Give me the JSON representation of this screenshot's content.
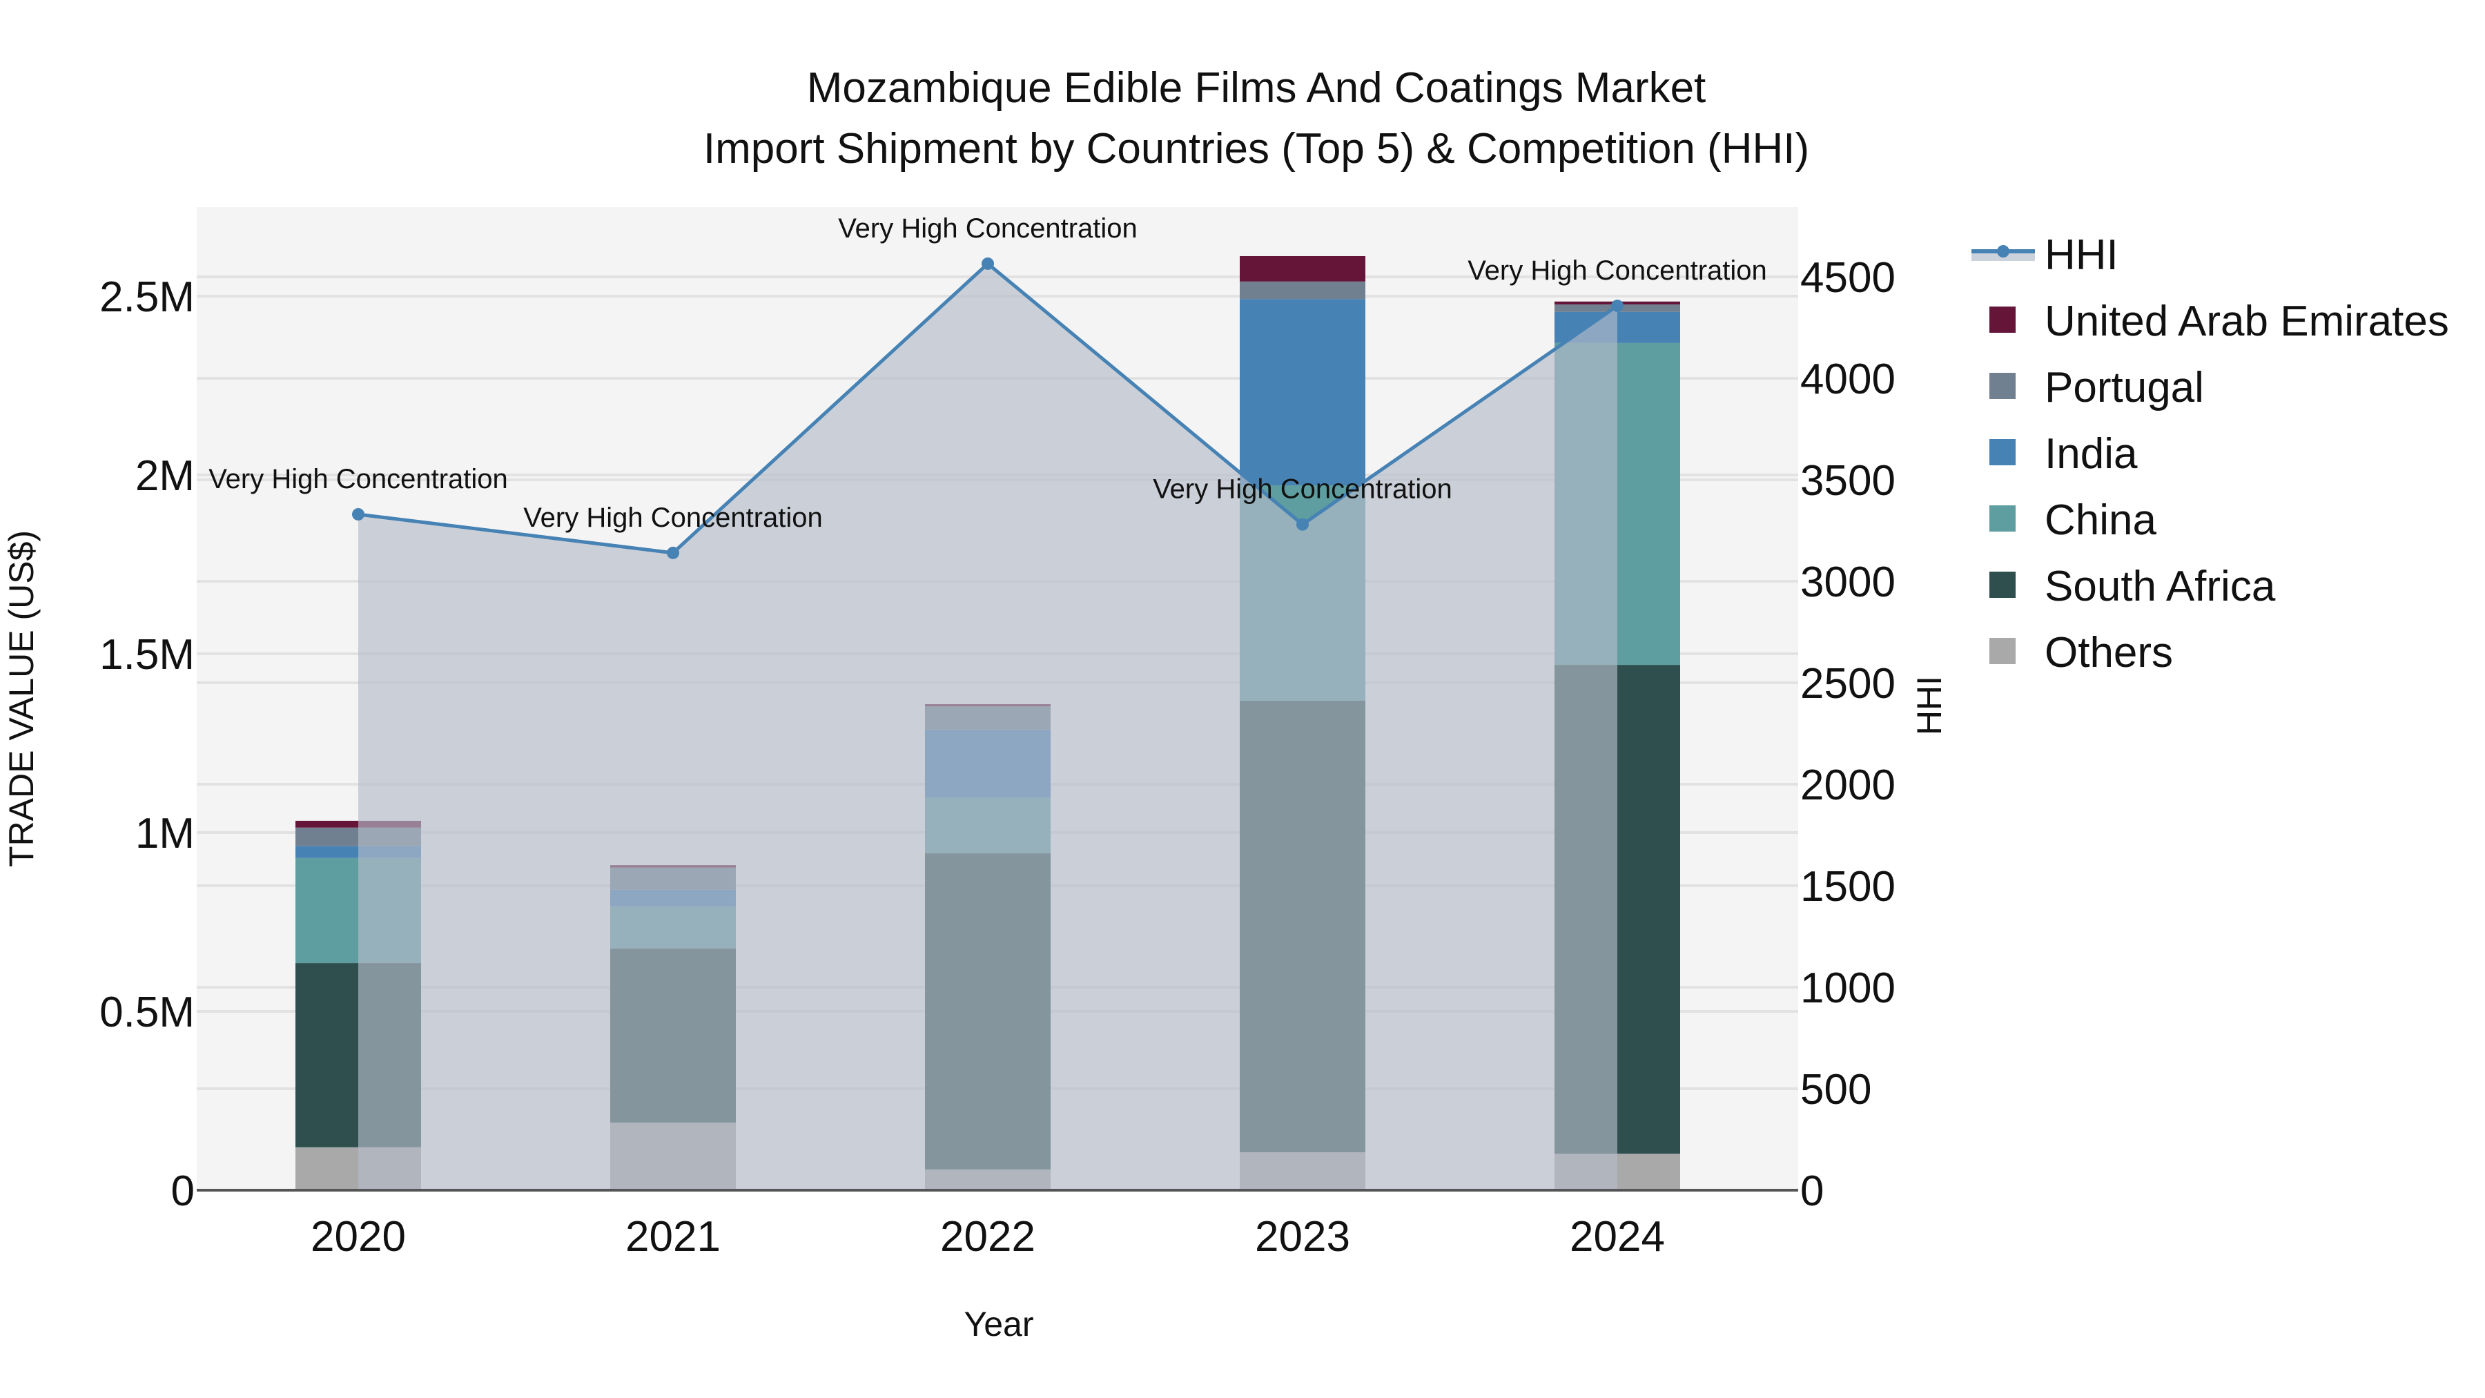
{
  "title": {
    "line1": "Mozambique Edible Films And Coatings Market",
    "line2": "Import Shipment by Countries (Top 5) & Competition (HHI)"
  },
  "axes": {
    "x_title": "Year",
    "y_left_title": "TRADE VALUE (US$)",
    "y_right_title": "HHI",
    "y_left_ticks": [
      "0",
      "0.5M",
      "1M",
      "1.5M",
      "2M",
      "2.5M"
    ],
    "y_right_ticks": [
      "0",
      "500",
      "1000",
      "1500",
      "2000",
      "2500",
      "3000",
      "3500",
      "4000",
      "4500"
    ]
  },
  "legend": [
    {
      "name": "HHI",
      "color": "#4682B4",
      "type": "line"
    },
    {
      "name": "United Arab Emirates",
      "color": "#641538",
      "type": "bar"
    },
    {
      "name": "Portugal",
      "color": "#708090",
      "type": "bar"
    },
    {
      "name": "India",
      "color": "#4682B4",
      "type": "bar"
    },
    {
      "name": "China",
      "color": "#5F9EA0",
      "type": "bar"
    },
    {
      "name": "South Africa",
      "color": "#2F4F4F",
      "type": "bar"
    },
    {
      "name": "Others",
      "color": "#A9A9A9",
      "type": "bar"
    }
  ],
  "annotation_label": "Very High Concentration",
  "chart_data": {
    "type": "bar",
    "stacked": true,
    "title": "Mozambique Edible Films And Coatings Market — Import Shipment by Countries (Top 5) & Competition (HHI)",
    "xlabel": "Year",
    "ylabel": "TRADE VALUE (US$)",
    "y2label": "HHI",
    "categories": [
      "2020",
      "2021",
      "2022",
      "2023",
      "2024"
    ],
    "ylim": [
      0,
      2750000
    ],
    "y2lim": [
      0,
      4830
    ],
    "grid": true,
    "legend_position": "right",
    "series": [
      {
        "name": "Others",
        "color": "#A9A9A9",
        "values": [
          120000,
          189000,
          58000,
          106000,
          102000
        ]
      },
      {
        "name": "South Africa",
        "color": "#2F4F4F",
        "values": [
          515000,
          487000,
          884000,
          1263000,
          1367000
        ]
      },
      {
        "name": "China",
        "color": "#5F9EA0",
        "values": [
          294000,
          117000,
          156000,
          602000,
          900000
        ]
      },
      {
        "name": "India",
        "color": "#4682B4",
        "values": [
          33000,
          47000,
          190000,
          521000,
          87000
        ]
      },
      {
        "name": "Portugal",
        "color": "#708090",
        "values": [
          52000,
          62000,
          65000,
          49000,
          21000
        ]
      },
      {
        "name": "United Arab Emirates",
        "color": "#641538",
        "values": [
          19000,
          7000,
          6000,
          71000,
          8000
        ]
      }
    ],
    "line_series": {
      "name": "HHI",
      "axis": "right",
      "color": "#4682B4",
      "fill": "tozeroy",
      "values": [
        3330,
        3140,
        4565,
        3280,
        4357
      ],
      "annotations": [
        "Very High Concentration",
        "Very High Concentration",
        "Very High Concentration",
        "Very High Concentration",
        "Very High Concentration"
      ]
    }
  }
}
